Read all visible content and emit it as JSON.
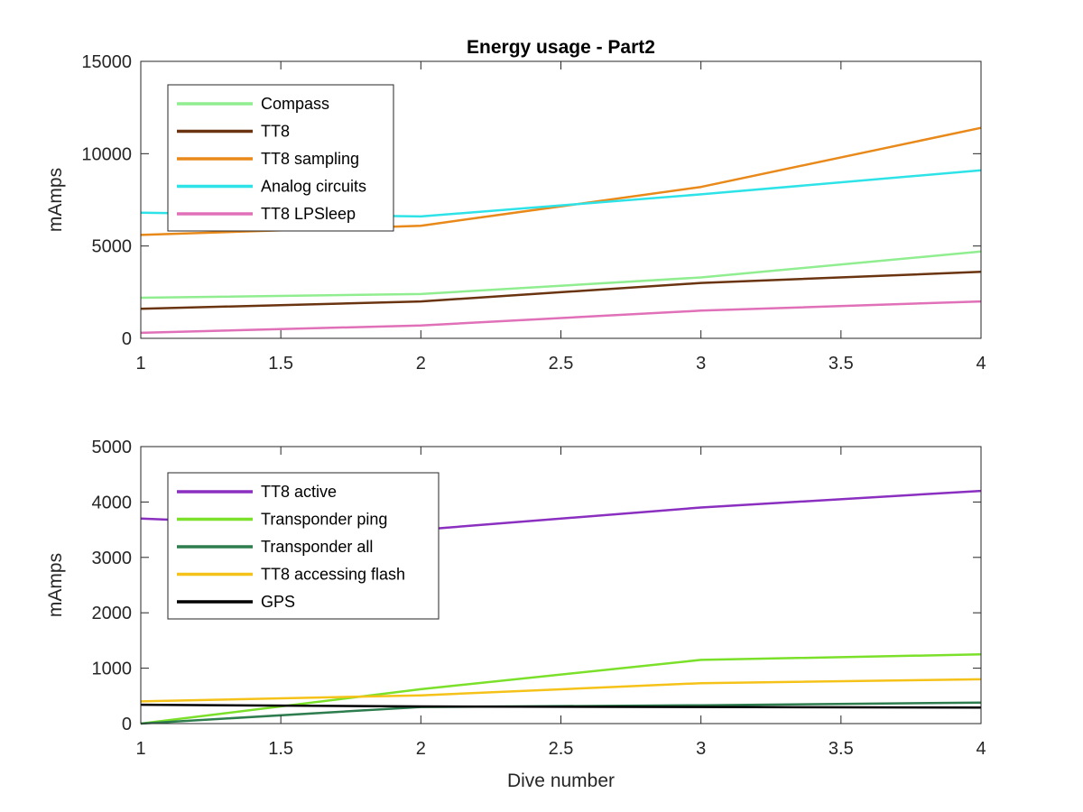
{
  "chart_data": [
    {
      "type": "line",
      "title": "Energy usage - Part2",
      "xlabel": "",
      "ylabel": "mAmps",
      "xlim": [
        1,
        4
      ],
      "ylim": [
        0,
        15000
      ],
      "xticks": [
        "1",
        "1.5",
        "2",
        "2.5",
        "3",
        "3.5",
        "4"
      ],
      "yticks": [
        "0",
        "5000",
        "10000",
        "15000"
      ],
      "legend_position": "top-left",
      "grid": false,
      "x": [
        1,
        2,
        3,
        4
      ],
      "series": [
        {
          "name": "Compass",
          "color": "#90ee90",
          "values": [
            2200,
            2400,
            3300,
            4700
          ]
        },
        {
          "name": "TT8",
          "color": "#6b3410",
          "values": [
            1600,
            2000,
            3000,
            3600
          ]
        },
        {
          "name": "TT8 sampling",
          "color": "#e8891a",
          "values": [
            5600,
            6100,
            8200,
            11400
          ]
        },
        {
          "name": "Analog circuits",
          "color": "#2ee3e8",
          "values": [
            6800,
            6600,
            7800,
            9100
          ]
        },
        {
          "name": "TT8 LPSleep",
          "color": "#e070b8",
          "values": [
            300,
            700,
            1500,
            2000
          ]
        }
      ]
    },
    {
      "type": "line",
      "title": "",
      "xlabel": "Dive number",
      "ylabel": "mAmps",
      "xlim": [
        1,
        4
      ],
      "ylim": [
        0,
        5000
      ],
      "xticks": [
        "1",
        "1.5",
        "2",
        "2.5",
        "3",
        "3.5",
        "4"
      ],
      "yticks": [
        "0",
        "1000",
        "2000",
        "3000",
        "4000",
        "5000"
      ],
      "legend_position": "top-left",
      "grid": false,
      "x": [
        1,
        2,
        3,
        4
      ],
      "series": [
        {
          "name": "TT8 active",
          "color": "#8a2fc0",
          "values": [
            3700,
            3500,
            3900,
            4200
          ]
        },
        {
          "name": "Transponder ping",
          "color": "#7be02a",
          "values": [
            0,
            620,
            1150,
            1250
          ]
        },
        {
          "name": "Transponder all",
          "color": "#2e7d4f",
          "values": [
            0,
            300,
            330,
            380
          ]
        },
        {
          "name": "TT8 accessing flash",
          "color": "#f5c21a",
          "values": [
            400,
            510,
            730,
            800
          ]
        },
        {
          "name": "GPS",
          "color": "#000000",
          "values": [
            340,
            310,
            300,
            290
          ]
        }
      ]
    }
  ]
}
